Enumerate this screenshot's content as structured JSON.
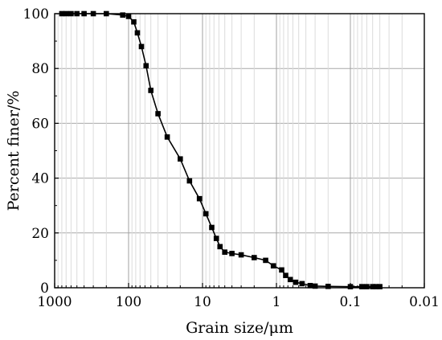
{
  "chart_data": {
    "type": "line",
    "xlabel": "Grain size/μm",
    "ylabel": "Percent finer/%",
    "x_scale": "log",
    "x_reversed": true,
    "xlim": [
      1000,
      0.01
    ],
    "ylim": [
      0,
      100
    ],
    "xticks": [
      "1000",
      "100",
      "10",
      "1",
      "0.1",
      "0.01"
    ],
    "yticks": [
      "0",
      "20",
      "40",
      "60",
      "80",
      "100"
    ],
    "grid": true,
    "series": [
      {
        "marker": "square",
        "color": "#000000",
        "x": [
          800,
          700,
          600,
          500,
          400,
          300,
          200,
          120,
          100,
          85,
          76,
          67,
          58,
          50,
          40,
          30,
          20,
          15,
          11,
          9,
          7.5,
          6.5,
          5.8,
          5,
          4,
          3,
          2,
          1.4,
          1.1,
          0.85,
          0.75,
          0.65,
          0.55,
          0.45,
          0.35,
          0.3,
          0.2,
          0.1,
          0.07,
          0.06,
          0.05,
          0.045,
          0.04
        ],
        "y": [
          100,
          100,
          100,
          100,
          100,
          100,
          100,
          99.5,
          99,
          97,
          93,
          88,
          81,
          72,
          63.5,
          55,
          47,
          39,
          32.5,
          27,
          22,
          18,
          15,
          13,
          12.5,
          12,
          11,
          10,
          8,
          6.5,
          4.5,
          3,
          2,
          1.5,
          0.8,
          0.6,
          0.5,
          0.4,
          0.4,
          0.4,
          0.4,
          0.4,
          0.4
        ]
      }
    ]
  }
}
